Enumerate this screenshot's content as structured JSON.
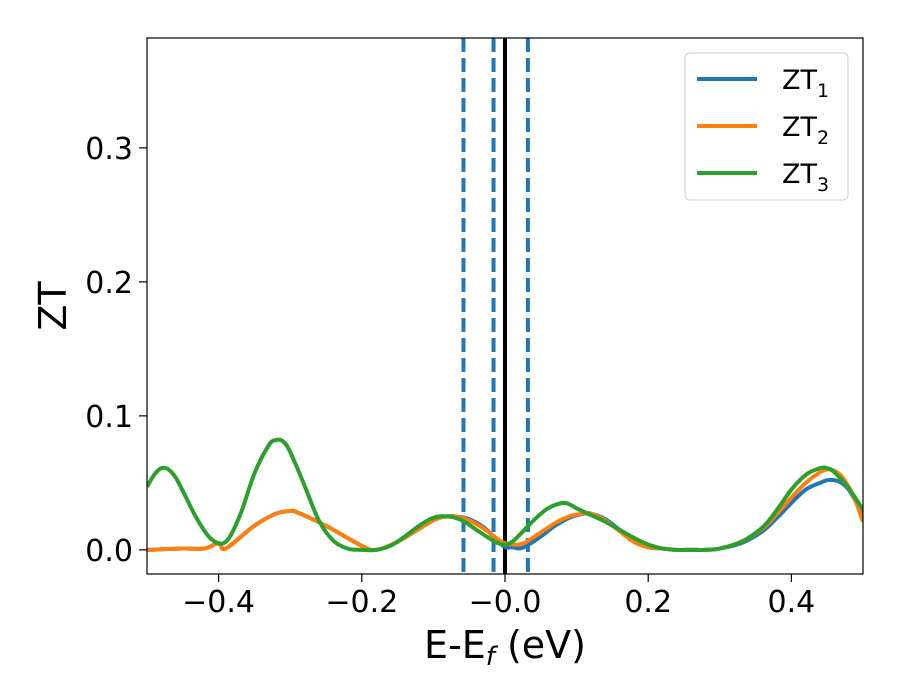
{
  "chart_data": {
    "type": "line",
    "xlabel": {
      "main": "E-E",
      "sub": "f",
      "rest": " (eV)"
    },
    "ylabel": "ZT",
    "xlim": [
      -0.5,
      0.5
    ],
    "ylim": [
      -0.018,
      0.382
    ],
    "x_ticks": [
      {
        "value": -0.4,
        "label": "−0.4"
      },
      {
        "value": -0.2,
        "label": "−0.2"
      },
      {
        "value": 0.0,
        "label": "−0.0"
      },
      {
        "value": 0.2,
        "label": "0.2"
      },
      {
        "value": 0.4,
        "label": "0.4"
      }
    ],
    "y_ticks": [
      {
        "value": 0.0,
        "label": "0.0"
      },
      {
        "value": 0.1,
        "label": "0.1"
      },
      {
        "value": 0.2,
        "label": "0.2"
      },
      {
        "value": 0.3,
        "label": "0.3"
      }
    ],
    "grid": false,
    "legend_position": "top-right",
    "vertical_lines": [
      {
        "x": -0.058,
        "style": "dashed",
        "color": "#1f77b4"
      },
      {
        "x": -0.016,
        "style": "dashed",
        "color": "#1f77b4"
      },
      {
        "x": 0.0,
        "style": "solid",
        "color": "#000000"
      },
      {
        "x": 0.032,
        "style": "dashed",
        "color": "#1f77b4"
      }
    ],
    "series": [
      {
        "name": "ZT",
        "sub": "1",
        "color": "#1f77b4",
        "x": [
          -0.5,
          -0.45,
          -0.42,
          -0.4,
          -0.39,
          -0.35,
          -0.32,
          -0.3,
          -0.29,
          -0.25,
          -0.2,
          -0.18,
          -0.15,
          -0.1,
          -0.08,
          -0.07,
          -0.05,
          -0.03,
          -0.02,
          -0.01,
          0.0,
          0.01,
          0.02,
          0.03,
          0.05,
          0.07,
          0.09,
          0.11,
          0.12,
          0.14,
          0.16,
          0.18,
          0.2,
          0.22,
          0.24,
          0.26,
          0.28,
          0.3,
          0.33,
          0.36,
          0.38,
          0.4,
          0.42,
          0.44,
          0.45,
          0.46,
          0.47,
          0.48,
          0.49,
          0.5
        ],
        "y": [
          0.0,
          0.001,
          0.001,
          0.005,
          0.001,
          0.018,
          0.027,
          0.029,
          0.028,
          0.018,
          0.003,
          0.0,
          0.006,
          0.022,
          0.025,
          0.025,
          0.023,
          0.017,
          0.012,
          0.007,
          0.002,
          0.002,
          0.001,
          0.003,
          0.01,
          0.018,
          0.024,
          0.027,
          0.027,
          0.023,
          0.015,
          0.007,
          0.002,
          0.001,
          0.0,
          0.0,
          0.0,
          0.001,
          0.005,
          0.014,
          0.024,
          0.035,
          0.045,
          0.05,
          0.052,
          0.052,
          0.05,
          0.045,
          0.036,
          0.025
        ]
      },
      {
        "name": "ZT",
        "sub": "2",
        "color": "#ff7f0e",
        "x": [
          -0.5,
          -0.45,
          -0.42,
          -0.4,
          -0.39,
          -0.35,
          -0.32,
          -0.3,
          -0.29,
          -0.25,
          -0.2,
          -0.18,
          -0.15,
          -0.1,
          -0.08,
          -0.07,
          -0.05,
          -0.03,
          -0.02,
          -0.01,
          0.0,
          0.01,
          0.02,
          0.03,
          0.05,
          0.07,
          0.09,
          0.11,
          0.12,
          0.14,
          0.16,
          0.18,
          0.2,
          0.22,
          0.24,
          0.26,
          0.28,
          0.3,
          0.33,
          0.36,
          0.38,
          0.4,
          0.42,
          0.44,
          0.45,
          0.46,
          0.47,
          0.48,
          0.49,
          0.5
        ],
        "y": [
          0.0,
          0.001,
          0.001,
          0.005,
          0.001,
          0.018,
          0.027,
          0.029,
          0.028,
          0.018,
          0.003,
          0.0,
          0.006,
          0.022,
          0.025,
          0.025,
          0.022,
          0.016,
          0.012,
          0.008,
          0.005,
          0.004,
          0.004,
          0.006,
          0.013,
          0.02,
          0.025,
          0.027,
          0.027,
          0.022,
          0.014,
          0.006,
          0.002,
          0.001,
          0.0,
          0.0,
          0.0,
          0.001,
          0.006,
          0.016,
          0.027,
          0.039,
          0.05,
          0.058,
          0.06,
          0.059,
          0.055,
          0.047,
          0.036,
          0.021
        ]
      },
      {
        "name": "ZT",
        "sub": "3",
        "color": "#2ca02c",
        "x": [
          -0.5,
          -0.49,
          -0.48,
          -0.47,
          -0.46,
          -0.45,
          -0.43,
          -0.41,
          -0.39,
          -0.37,
          -0.35,
          -0.33,
          -0.32,
          -0.31,
          -0.3,
          -0.28,
          -0.26,
          -0.24,
          -0.22,
          -0.2,
          -0.18,
          -0.16,
          -0.14,
          -0.12,
          -0.1,
          -0.08,
          -0.06,
          -0.04,
          -0.02,
          -0.01,
          0.0,
          0.01,
          0.02,
          0.04,
          0.06,
          0.08,
          0.09,
          0.1,
          0.12,
          0.14,
          0.16,
          0.18,
          0.2,
          0.22,
          0.24,
          0.26,
          0.28,
          0.3,
          0.33,
          0.36,
          0.38,
          0.4,
          0.42,
          0.44,
          0.45,
          0.46,
          0.48,
          0.5
        ],
        "y": [
          0.047,
          0.056,
          0.061,
          0.06,
          0.054,
          0.044,
          0.023,
          0.008,
          0.006,
          0.026,
          0.057,
          0.078,
          0.082,
          0.081,
          0.073,
          0.048,
          0.022,
          0.007,
          0.001,
          0.0,
          0.0,
          0.003,
          0.01,
          0.018,
          0.024,
          0.025,
          0.022,
          0.015,
          0.008,
          0.005,
          0.004,
          0.006,
          0.011,
          0.022,
          0.031,
          0.035,
          0.034,
          0.031,
          0.026,
          0.021,
          0.015,
          0.009,
          0.004,
          0.001,
          0.0,
          0.0,
          0.0,
          0.001,
          0.006,
          0.017,
          0.03,
          0.045,
          0.056,
          0.061,
          0.061,
          0.058,
          0.046,
          0.03
        ]
      }
    ]
  }
}
